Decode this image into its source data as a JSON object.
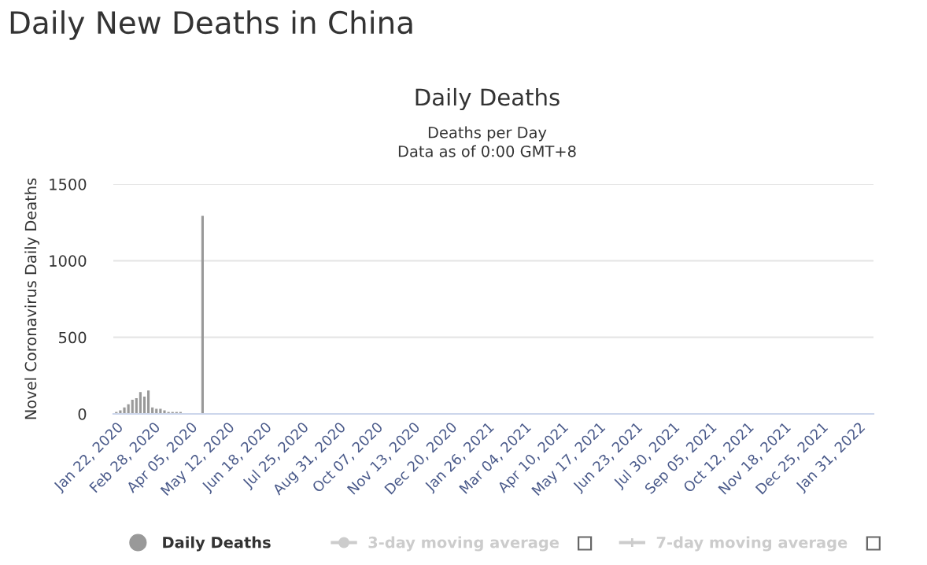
{
  "chart_data": {
    "type": "bar",
    "title": "Daily New Deaths in China",
    "subtitle": "Daily Deaths",
    "annotations": [
      "Deaths per Day",
      "Data as of 0:00 GMT+8"
    ],
    "ylabel": "Novel Coronavirus Daily Deaths",
    "x": [
      "2020-01-22",
      "2020-01-26",
      "2020-01-30",
      "2020-02-03",
      "2020-02-07",
      "2020-02-11",
      "2020-02-15",
      "2020-02-19",
      "2020-02-23",
      "2020-02-27",
      "2020-03-02",
      "2020-03-06",
      "2020-03-10",
      "2020-03-14",
      "2020-03-18",
      "2020-03-22",
      "2020-03-26",
      "2020-04-17"
    ],
    "series": [
      {
        "name": "Daily Deaths",
        "color": "#999999",
        "values": [
          10,
          20,
          40,
          60,
          90,
          100,
          140,
          110,
          150,
          40,
          30,
          30,
          20,
          10,
          10,
          10,
          10,
          1290
        ]
      },
      {
        "name": "3-day moving average",
        "type": "line",
        "color": "#cccccc",
        "marker": "circle",
        "values": [
          null,
          null,
          null,
          null,
          null,
          null,
          null,
          null,
          null,
          null,
          null,
          null,
          null,
          null,
          null,
          null,
          null,
          null
        ]
      },
      {
        "name": "7-day moving average",
        "type": "line",
        "color": "#cccccc",
        "marker": "cross",
        "values": [
          null,
          null,
          null,
          null,
          null,
          null,
          null,
          null,
          null,
          null,
          null,
          null,
          null,
          null,
          null,
          null,
          null,
          null
        ]
      }
    ],
    "xlim": [
      "2020-01-19",
      "2022-02-15"
    ],
    "xticks": [
      {
        "value": "2020-01-22",
        "label": "Jan 22, 2020"
      },
      {
        "value": "2020-02-28",
        "label": "Feb 28, 2020"
      },
      {
        "value": "2020-04-05",
        "label": "Apr 05, 2020"
      },
      {
        "value": "2020-05-12",
        "label": "May 12, 2020"
      },
      {
        "value": "2020-06-18",
        "label": "Jun 18, 2020"
      },
      {
        "value": "2020-07-25",
        "label": "Jul 25, 2020"
      },
      {
        "value": "2020-08-31",
        "label": "Aug 31, 2020"
      },
      {
        "value": "2020-10-07",
        "label": "Oct 07, 2020"
      },
      {
        "value": "2020-11-13",
        "label": "Nov 13, 2020"
      },
      {
        "value": "2020-12-20",
        "label": "Dec 20, 2020"
      },
      {
        "value": "2021-01-26",
        "label": "Jan 26, 2021"
      },
      {
        "value": "2021-03-04",
        "label": "Mar 04, 2021"
      },
      {
        "value": "2021-04-10",
        "label": "Apr 10, 2021"
      },
      {
        "value": "2021-05-17",
        "label": "May 17, 2021"
      },
      {
        "value": "2021-06-23",
        "label": "Jun 23, 2021"
      },
      {
        "value": "2021-07-30",
        "label": "Jul 30, 2021"
      },
      {
        "value": "2021-09-05",
        "label": "Sep 05, 2021"
      },
      {
        "value": "2021-10-12",
        "label": "Oct 12, 2021"
      },
      {
        "value": "2021-11-18",
        "label": "Nov 18, 2021"
      },
      {
        "value": "2021-12-25",
        "label": "Dec 25, 2021"
      },
      {
        "value": "2022-01-31",
        "label": "Jan 31, 2022"
      }
    ],
    "ylim": [
      0,
      1500
    ],
    "yticks": [
      0,
      500,
      1000,
      1500
    ],
    "grid": "y",
    "legend": "bottom"
  }
}
